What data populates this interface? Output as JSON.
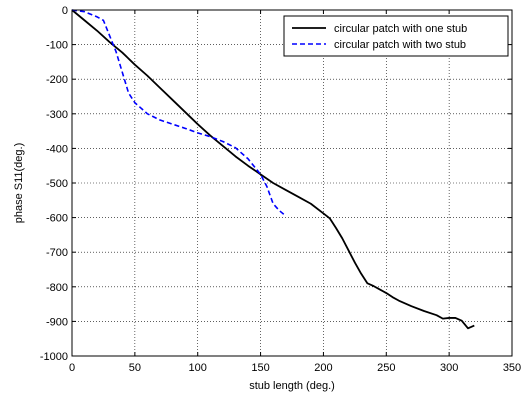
{
  "chart_data": {
    "type": "line",
    "xlabel": "stub length (deg.)",
    "ylabel": "phase S11(deg.)",
    "xlim": [
      0,
      350
    ],
    "ylim": [
      -1000,
      0
    ],
    "xticks": [
      0,
      50,
      100,
      150,
      200,
      250,
      300,
      350
    ],
    "yticks": [
      0,
      -100,
      -200,
      -300,
      -400,
      -500,
      -600,
      -700,
      -800,
      -900,
      -1000
    ],
    "grid": true,
    "legend_position": "top-right",
    "series": [
      {
        "name": "circular patch with one stub",
        "color": "#000000",
        "style": "solid",
        "x": [
          0,
          10,
          20,
          30,
          40,
          50,
          60,
          70,
          80,
          90,
          100,
          110,
          120,
          130,
          140,
          150,
          160,
          170,
          180,
          190,
          200,
          205,
          210,
          215,
          220,
          225,
          230,
          235,
          240,
          250,
          255,
          260,
          270,
          280,
          290,
          295,
          300,
          305,
          310,
          315,
          320
        ],
        "y": [
          0,
          -30,
          -60,
          -93,
          -123,
          -158,
          -190,
          -225,
          -260,
          -295,
          -330,
          -363,
          -393,
          -423,
          -450,
          -475,
          -500,
          -520,
          -540,
          -560,
          -588,
          -602,
          -630,
          -660,
          -695,
          -730,
          -762,
          -790,
          -798,
          -818,
          -830,
          -840,
          -856,
          -870,
          -882,
          -892,
          -890,
          -890,
          -898,
          -920,
          -912
        ]
      },
      {
        "name": "circular patch with two stub",
        "color": "#0000ff",
        "style": "dashed",
        "x": [
          0,
          10,
          20,
          25,
          30,
          35,
          40,
          45,
          50,
          60,
          70,
          80,
          90,
          100,
          110,
          120,
          130,
          140,
          150,
          155,
          160,
          165,
          170
        ],
        "y": [
          0,
          -5,
          -20,
          -30,
          -75,
          -120,
          -180,
          -240,
          -268,
          -300,
          -318,
          -330,
          -342,
          -355,
          -366,
          -380,
          -398,
          -430,
          -475,
          -510,
          -560,
          -580,
          -595
        ]
      }
    ]
  }
}
